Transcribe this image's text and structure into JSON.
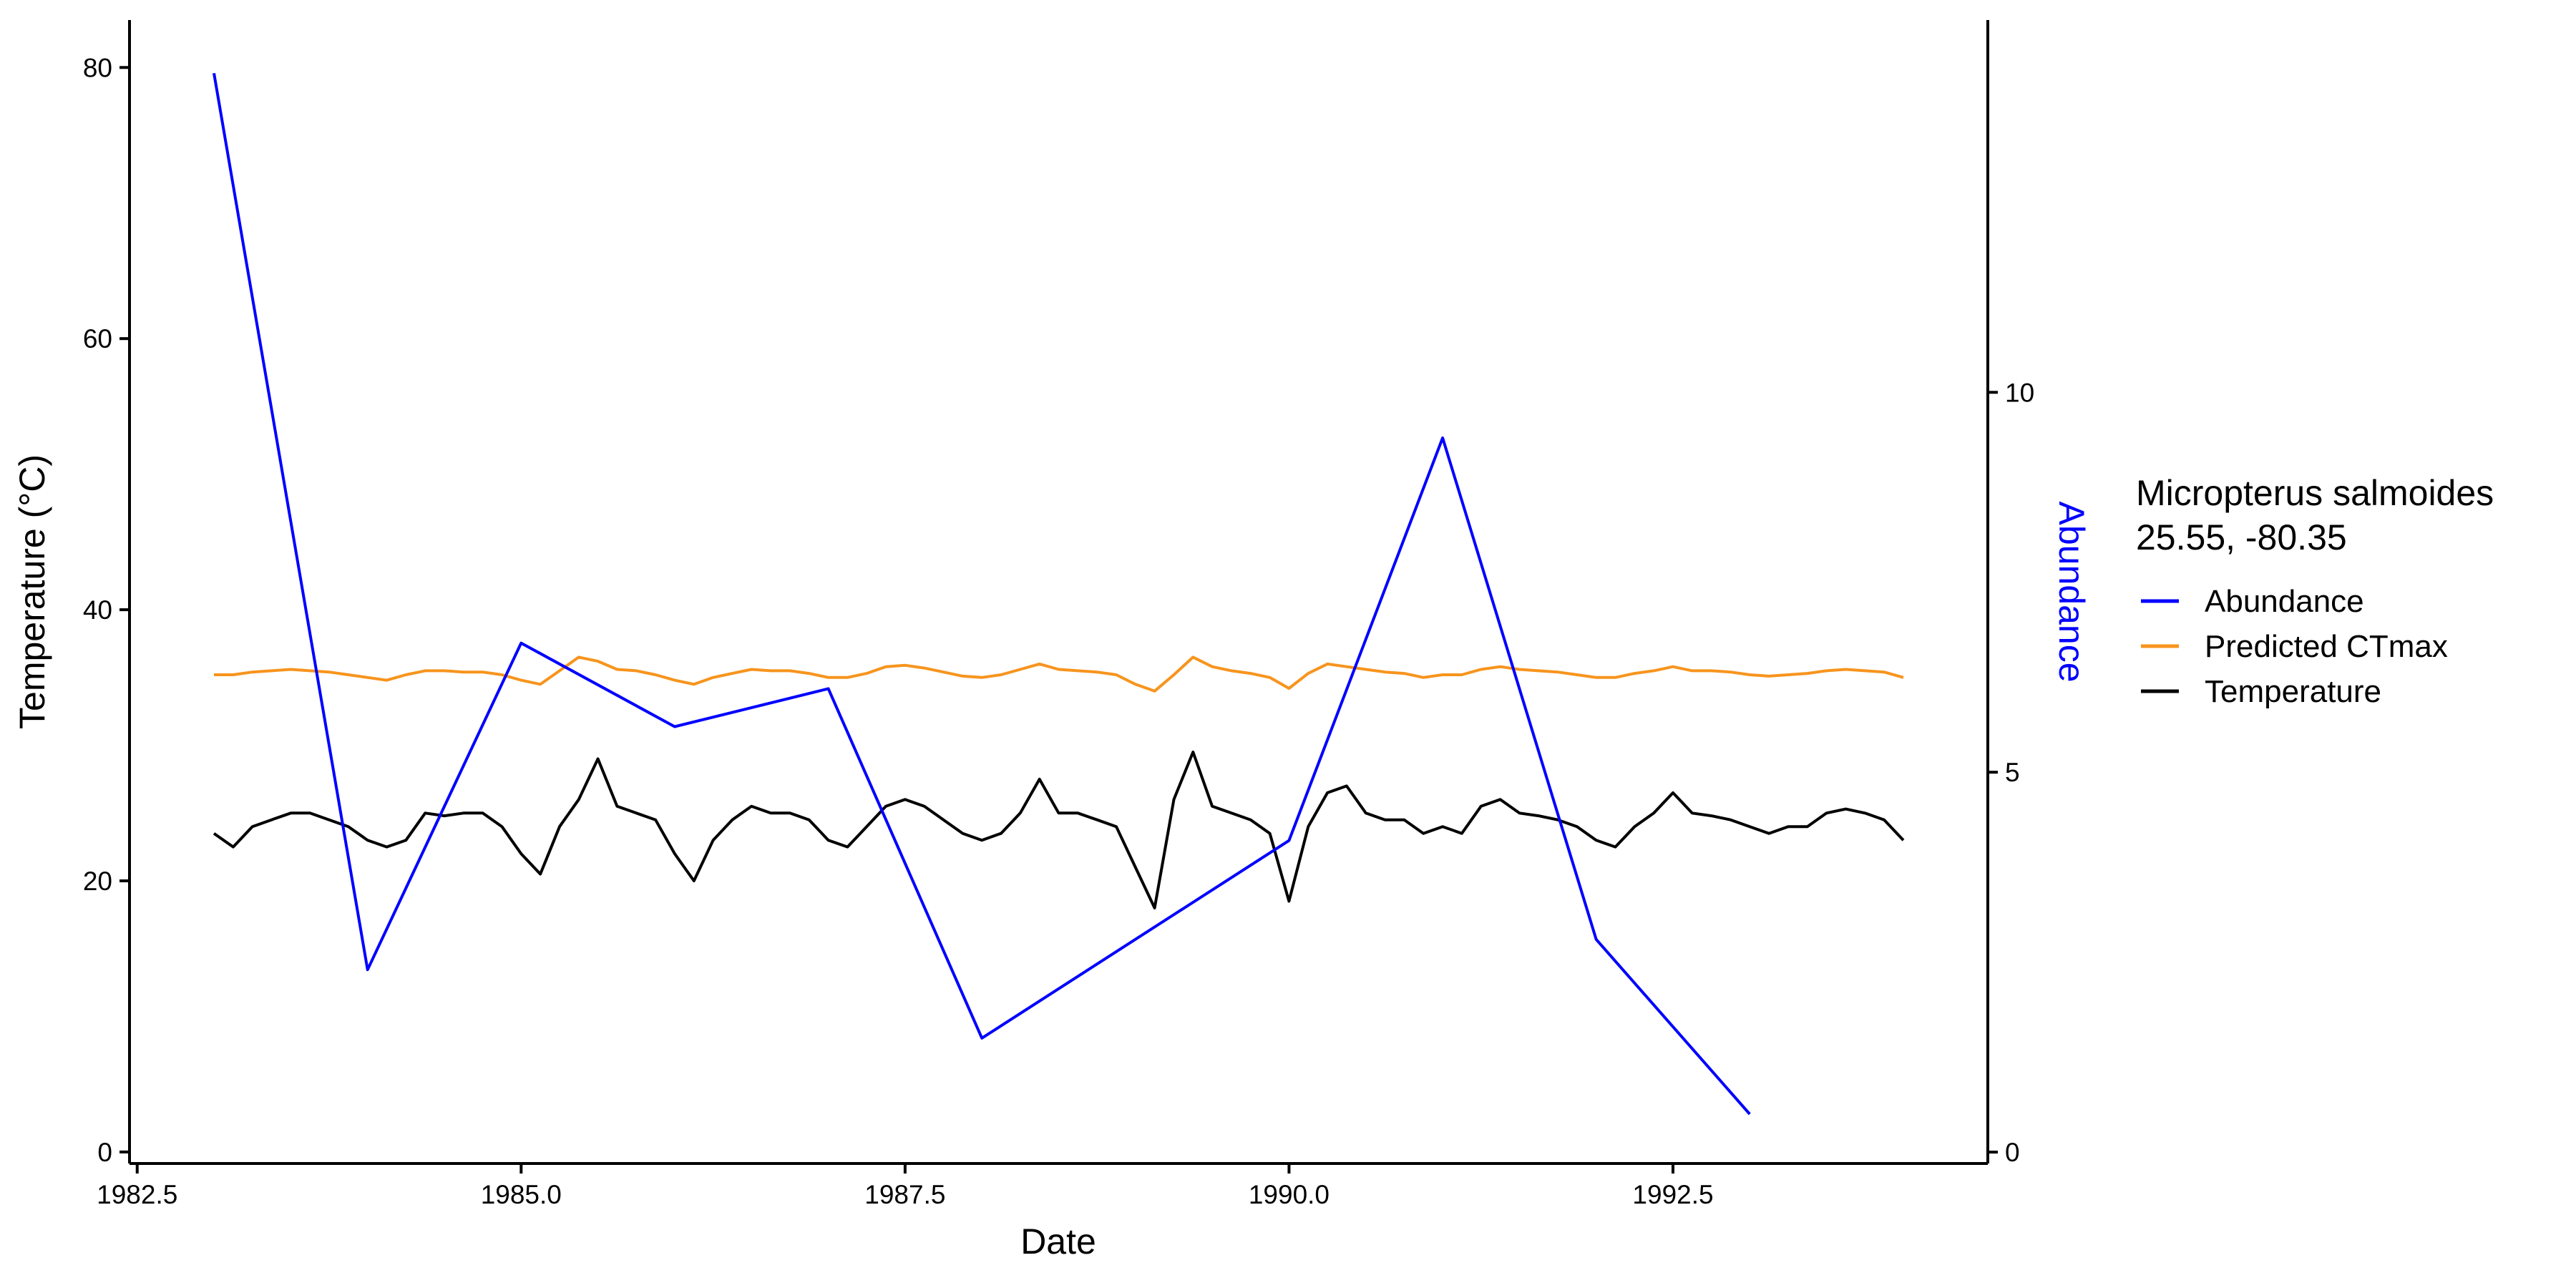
{
  "chart_data": {
    "type": "line",
    "xlabel": "Date",
    "ylabel": "Temperature (°C)",
    "y2label": "Abundance",
    "legend_title": [
      "Micropterus salmoides",
      "25.55, -80.35"
    ],
    "xlim": [
      1982.45,
      1994.55
    ],
    "xticks": [
      1982.5,
      {
        "value": 1985,
        "label": "1985.0"
      },
      1987.5,
      {
        "value": 1990,
        "label": "1990.0"
      },
      1992.5
    ],
    "ylim": [
      -0.85,
      83.5
    ],
    "yticks": [
      0,
      20,
      40,
      60,
      80
    ],
    "y2lim": [
      -0.15,
      14.9
    ],
    "y2ticks": [
      0,
      5,
      10
    ],
    "series": [
      {
        "name": "Abundance",
        "color": "#0000ff",
        "axis": "y2",
        "x": [
          1983,
          1984,
          1985,
          1986,
          1987,
          1988,
          1990,
          1991,
          1992,
          1993
        ],
        "values": [
          14.2,
          2.4,
          6.7,
          5.6,
          6.1,
          1.5,
          4.1,
          9.4,
          2.8,
          0.5
        ]
      },
      {
        "name": "Predicted CTmax",
        "color": "#f7941d",
        "x": [
          1983,
          1983.125,
          1983.25,
          1983.375,
          1983.5,
          1983.625,
          1983.75,
          1983.875,
          1984,
          1984.125,
          1984.25,
          1984.375,
          1984.5,
          1984.625,
          1984.75,
          1984.875,
          1985,
          1985.125,
          1985.25,
          1985.375,
          1985.5,
          1985.625,
          1985.75,
          1985.875,
          1986,
          1986.125,
          1986.25,
          1986.375,
          1986.5,
          1986.625,
          1986.75,
          1986.875,
          1987,
          1987.125,
          1987.25,
          1987.375,
          1987.5,
          1987.625,
          1987.75,
          1987.875,
          1988,
          1988.125,
          1988.25,
          1988.375,
          1988.5,
          1988.625,
          1988.75,
          1988.875,
          1989,
          1989.125,
          1989.25,
          1989.375,
          1989.5,
          1989.625,
          1989.75,
          1989.875,
          1990,
          1990.125,
          1990.25,
          1990.375,
          1990.5,
          1990.625,
          1990.75,
          1990.875,
          1991,
          1991.125,
          1991.25,
          1991.375,
          1991.5,
          1991.625,
          1991.75,
          1991.875,
          1992,
          1992.125,
          1992.25,
          1992.375,
          1992.5,
          1992.625,
          1992.75,
          1992.875,
          1993,
          1993.125,
          1993.25,
          1993.375,
          1993.5,
          1993.625,
          1993.75,
          1993.875,
          1994
        ],
        "values": [
          35.2,
          35.2,
          35.4,
          35.5,
          35.6,
          35.5,
          35.4,
          35.2,
          35,
          34.8,
          35.2,
          35.5,
          35.5,
          35.4,
          35.4,
          35.2,
          34.8,
          34.5,
          35.5,
          36.5,
          36.2,
          35.6,
          35.5,
          35.2,
          34.8,
          34.5,
          35,
          35.3,
          35.6,
          35.5,
          35.5,
          35.3,
          35,
          35,
          35.3,
          35.8,
          35.9,
          35.7,
          35.4,
          35.1,
          35,
          35.2,
          35.6,
          36,
          35.6,
          35.5,
          35.4,
          35.2,
          34.5,
          34,
          35.2,
          36.5,
          35.8,
          35.5,
          35.3,
          35,
          34.2,
          35.3,
          36,
          35.8,
          35.6,
          35.4,
          35.3,
          35,
          35.2,
          35.2,
          35.6,
          35.8,
          35.6,
          35.5,
          35.4,
          35.2,
          35,
          35,
          35.3,
          35.5,
          35.8,
          35.5,
          35.5,
          35.4,
          35.2,
          35.1,
          35.2,
          35.3,
          35.5,
          35.6,
          35.5,
          35.4,
          35
        ]
      },
      {
        "name": "Temperature",
        "color": "#000000",
        "x": [
          1983,
          1983.125,
          1983.25,
          1983.375,
          1983.5,
          1983.625,
          1983.75,
          1983.875,
          1984,
          1984.125,
          1984.25,
          1984.375,
          1984.5,
          1984.625,
          1984.75,
          1984.875,
          1985,
          1985.125,
          1985.25,
          1985.375,
          1985.5,
          1985.625,
          1985.75,
          1985.875,
          1986,
          1986.125,
          1986.25,
          1986.375,
          1986.5,
          1986.625,
          1986.75,
          1986.875,
          1987,
          1987.125,
          1987.25,
          1987.375,
          1987.5,
          1987.625,
          1987.75,
          1987.875,
          1988,
          1988.125,
          1988.25,
          1988.375,
          1988.5,
          1988.625,
          1988.75,
          1988.875,
          1989,
          1989.125,
          1989.25,
          1989.375,
          1989.5,
          1989.625,
          1989.75,
          1989.875,
          1990,
          1990.125,
          1990.25,
          1990.375,
          1990.5,
          1990.625,
          1990.75,
          1990.875,
          1991,
          1991.125,
          1991.25,
          1991.375,
          1991.5,
          1991.625,
          1991.75,
          1991.875,
          1992,
          1992.125,
          1992.25,
          1992.375,
          1992.5,
          1992.625,
          1992.75,
          1992.875,
          1993,
          1993.125,
          1993.25,
          1993.375,
          1993.5,
          1993.625,
          1993.75,
          1993.875,
          1994
        ],
        "values": [
          23.5,
          22.5,
          24,
          24.5,
          25,
          25,
          24.5,
          24,
          23,
          22.5,
          23,
          25,
          24.8,
          25,
          25,
          24,
          22,
          20.5,
          24,
          26,
          29,
          25.5,
          25,
          24.5,
          22,
          20,
          23,
          24.5,
          25.5,
          25,
          25,
          24.5,
          23,
          22.5,
          24,
          25.5,
          26,
          25.5,
          24.5,
          23.5,
          23,
          23.5,
          25,
          27.5,
          25,
          25,
          24.5,
          24,
          21,
          18,
          26,
          29.5,
          25.5,
          25,
          24.5,
          23.5,
          18.5,
          24,
          26.5,
          27,
          25,
          24.5,
          24.5,
          23.5,
          24,
          23.5,
          25.5,
          26,
          25,
          24.8,
          24.5,
          24,
          23,
          22.5,
          24,
          25,
          26.5,
          25,
          24.8,
          24.5,
          24,
          23.5,
          24,
          24,
          25,
          25.3,
          25,
          24.5,
          23
        ]
      }
    ]
  }
}
